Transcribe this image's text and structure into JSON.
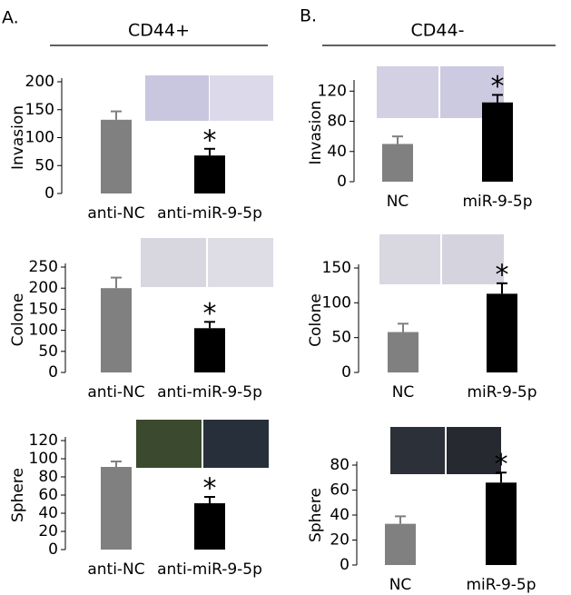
{
  "panels": [
    {
      "label": "A.",
      "title": "CD44+"
    },
    {
      "label": "B.",
      "title": "CD44-"
    }
  ],
  "chart_data": [
    {
      "type": "bar",
      "ylabel": "Invasion",
      "categories": [
        "anti-NC",
        "anti-miR-9-5p"
      ],
      "values": [
        132,
        68
      ],
      "errors": [
        15,
        12
      ],
      "colors": [
        "#808080",
        "#000000"
      ],
      "ylim": [
        0,
        200
      ],
      "yticks": [
        0,
        50,
        100,
        150,
        200
      ],
      "annotation": "*"
    },
    {
      "type": "bar",
      "ylabel": "Colone",
      "categories": [
        "anti-NC",
        "anti-miR-9-5p"
      ],
      "values": [
        200,
        105
      ],
      "errors": [
        25,
        15
      ],
      "colors": [
        "#808080",
        "#000000"
      ],
      "ylim": [
        0,
        250
      ],
      "yticks": [
        0,
        50,
        100,
        150,
        200,
        250
      ],
      "annotation": "*"
    },
    {
      "type": "bar",
      "ylabel": "Sphere",
      "categories": [
        "anti-NC",
        "anti-miR-9-5p"
      ],
      "values": [
        91,
        51
      ],
      "errors": [
        6,
        7
      ],
      "colors": [
        "#808080",
        "#000000"
      ],
      "ylim": [
        0,
        120
      ],
      "yticks": [
        0,
        20,
        40,
        60,
        80,
        100,
        120
      ],
      "annotation": "*"
    },
    {
      "type": "bar",
      "ylabel": "Invasion",
      "categories": [
        "NC",
        "miR-9-5p"
      ],
      "values": [
        50,
        105
      ],
      "errors": [
        10,
        10
      ],
      "colors": [
        "#808080",
        "#000000"
      ],
      "ylim": [
        0,
        130
      ],
      "yticks": [
        0,
        40,
        80,
        120
      ],
      "annotation": "*"
    },
    {
      "type": "bar",
      "ylabel": "Colone",
      "categories": [
        "NC",
        "miR-9-5p"
      ],
      "values": [
        58,
        113
      ],
      "errors": [
        12,
        15
      ],
      "colors": [
        "#808080",
        "#000000"
      ],
      "ylim": [
        0,
        150
      ],
      "yticks": [
        0,
        50,
        100,
        150
      ],
      "annotation": "*"
    },
    {
      "type": "bar",
      "ylabel": "Sphere",
      "categories": [
        "NC",
        "miR-9-5p"
      ],
      "values": [
        33,
        66
      ],
      "errors": [
        6,
        8
      ],
      "colors": [
        "#808080",
        "#000000"
      ],
      "ylim": [
        0,
        80
      ],
      "yticks": [
        0,
        20,
        40,
        60,
        80
      ],
      "annotation": "*"
    }
  ]
}
